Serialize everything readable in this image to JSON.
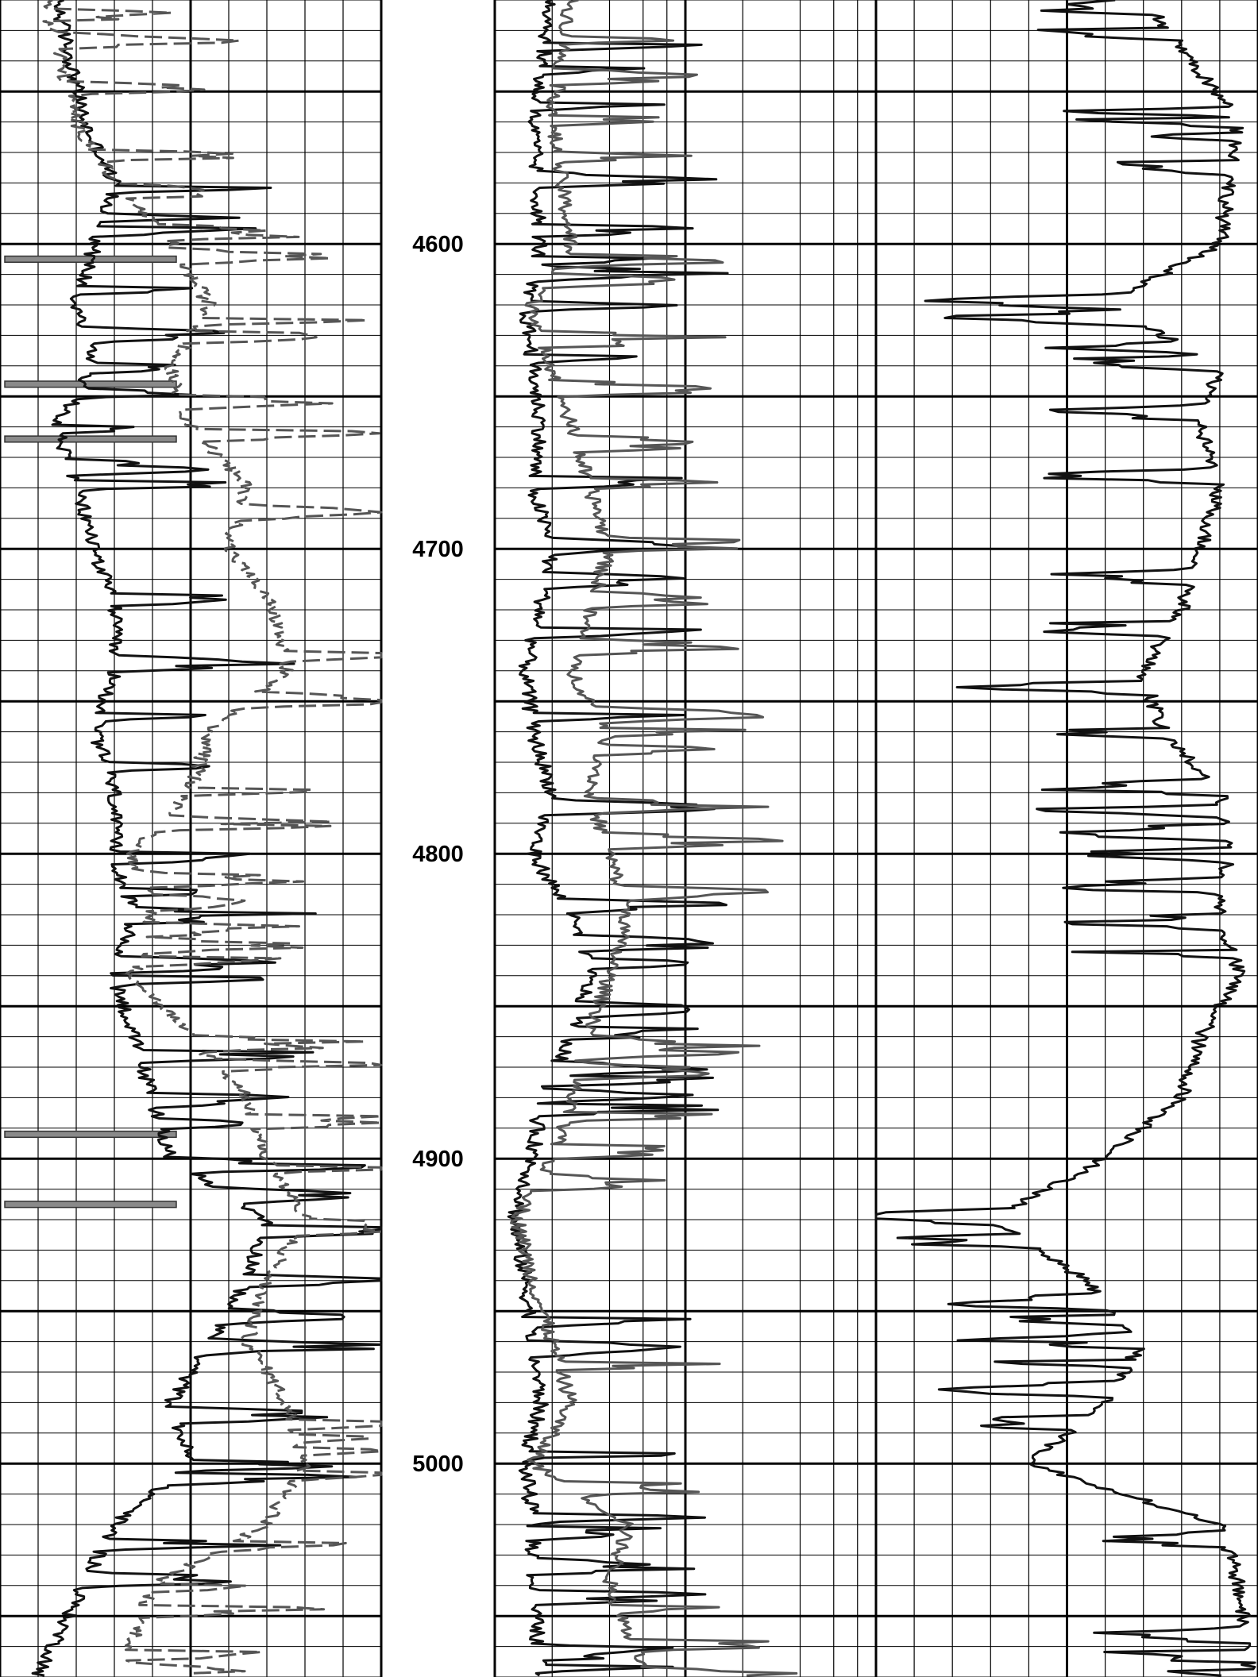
{
  "chart_data": {
    "type": "line",
    "title": "",
    "ylabel": "",
    "depth_range": [
      4520,
      5070
    ],
    "depth_axis_reversed": true,
    "grid": true,
    "major_grid_every": 50,
    "minor_grid_every": 10,
    "depth_ticks": [
      {
        "depth": 4600,
        "label": "4600"
      },
      {
        "depth": 4700,
        "label": "4700"
      },
      {
        "depth": 4800,
        "label": "4800"
      },
      {
        "depth": 4900,
        "label": "4900"
      },
      {
        "depth": 5000,
        "label": "5000"
      }
    ],
    "tracks": [
      {
        "name": "",
        "scale": "linear",
        "vertical_divisions": 10,
        "series": [
          {
            "name": "",
            "style": "solid",
            "color": "#111111",
            "profile": [
              [
                4520,
                0.15
              ],
              [
                4560,
                0.22
              ],
              [
                4580,
                0.3
              ],
              [
                4600,
                0.25
              ],
              [
                4620,
                0.2
              ],
              [
                4640,
                0.25
              ],
              [
                4660,
                0.15
              ],
              [
                4680,
                0.2
              ],
              [
                4700,
                0.25
              ],
              [
                4720,
                0.3
              ],
              [
                4740,
                0.3
              ],
              [
                4760,
                0.25
              ],
              [
                4780,
                0.3
              ],
              [
                4800,
                0.3
              ],
              [
                4820,
                0.35
              ],
              [
                4840,
                0.3
              ],
              [
                4860,
                0.35
              ],
              [
                4880,
                0.4
              ],
              [
                4900,
                0.45
              ],
              [
                4920,
                0.7
              ],
              [
                4940,
                0.65
              ],
              [
                4960,
                0.55
              ],
              [
                4980,
                0.45
              ],
              [
                5000,
                0.5
              ],
              [
                5020,
                0.3
              ],
              [
                5040,
                0.22
              ],
              [
                5070,
                0.1
              ]
            ]
          },
          {
            "name": "",
            "style": "dashed",
            "color": "#555555",
            "profile": [
              [
                4520,
                0.12
              ],
              [
                4560,
                0.2
              ],
              [
                4580,
                0.3
              ],
              [
                4600,
                0.45
              ],
              [
                4620,
                0.55
              ],
              [
                4640,
                0.45
              ],
              [
                4660,
                0.5
              ],
              [
                4680,
                0.65
              ],
              [
                4700,
                0.6
              ],
              [
                4720,
                0.72
              ],
              [
                4740,
                0.75
              ],
              [
                4760,
                0.55
              ],
              [
                4780,
                0.5
              ],
              [
                4800,
                0.35
              ],
              [
                4820,
                0.4
              ],
              [
                4840,
                0.35
              ],
              [
                4860,
                0.5
              ],
              [
                4880,
                0.65
              ],
              [
                4900,
                0.7
              ],
              [
                4920,
                0.8
              ],
              [
                4940,
                0.7
              ],
              [
                4960,
                0.65
              ],
              [
                4980,
                0.75
              ],
              [
                5000,
                0.8
              ],
              [
                5020,
                0.7
              ],
              [
                5040,
                0.4
              ],
              [
                5070,
                0.32
              ]
            ]
          }
        ]
      },
      {
        "name": "",
        "scale": "logarithmic",
        "vertical_divisions": 10,
        "series": [
          {
            "name": "",
            "style": "solid",
            "color": "#111111",
            "profile": [
              [
                4520,
                0.15
              ],
              [
                4560,
                0.1
              ],
              [
                4600,
                0.12
              ],
              [
                4620,
                0.08
              ],
              [
                4640,
                0.1
              ],
              [
                4660,
                0.12
              ],
              [
                4680,
                0.1
              ],
              [
                4700,
                0.15
              ],
              [
                4720,
                0.12
              ],
              [
                4740,
                0.08
              ],
              [
                4760,
                0.1
              ],
              [
                4780,
                0.15
              ],
              [
                4800,
                0.1
              ],
              [
                4820,
                0.2
              ],
              [
                4840,
                0.25
              ],
              [
                4860,
                0.2
              ],
              [
                4880,
                0.12
              ],
              [
                4900,
                0.1
              ],
              [
                4920,
                0.05
              ],
              [
                4940,
                0.08
              ],
              [
                4960,
                0.1
              ],
              [
                4980,
                0.12
              ],
              [
                5000,
                0.08
              ],
              [
                5020,
                0.1
              ],
              [
                5040,
                0.1
              ],
              [
                5070,
                0.12
              ]
            ]
          },
          {
            "name": "",
            "style": "solid",
            "color": "#555555",
            "profile": [
              [
                4520,
                0.2
              ],
              [
                4560,
                0.15
              ],
              [
                4600,
                0.2
              ],
              [
                4620,
                0.1
              ],
              [
                4640,
                0.15
              ],
              [
                4660,
                0.2
              ],
              [
                4680,
                0.25
              ],
              [
                4700,
                0.3
              ],
              [
                4720,
                0.25
              ],
              [
                4740,
                0.2
              ],
              [
                4760,
                0.3
              ],
              [
                4780,
                0.25
              ],
              [
                4800,
                0.3
              ],
              [
                4820,
                0.35
              ],
              [
                4840,
                0.3
              ],
              [
                4860,
                0.25
              ],
              [
                4880,
                0.2
              ],
              [
                4900,
                0.15
              ],
              [
                4920,
                0.06
              ],
              [
                4940,
                0.1
              ],
              [
                4960,
                0.15
              ],
              [
                4980,
                0.2
              ],
              [
                5000,
                0.1
              ],
              [
                5020,
                0.35
              ],
              [
                5040,
                0.3
              ],
              [
                5070,
                0.4
              ]
            ]
          }
        ]
      },
      {
        "name": "",
        "scale": "linear",
        "vertical_divisions": 10,
        "series": [
          {
            "name": "",
            "style": "solid",
            "color": "#111111",
            "profile": [
              [
                4520,
                0.7
              ],
              [
                4560,
                0.95
              ],
              [
                4600,
                0.9
              ],
              [
                4620,
                0.6
              ],
              [
                4640,
                0.9
              ],
              [
                4660,
                0.85
              ],
              [
                4680,
                0.9
              ],
              [
                4700,
                0.85
              ],
              [
                4720,
                0.8
              ],
              [
                4740,
                0.7
              ],
              [
                4760,
                0.75
              ],
              [
                4780,
                0.9
              ],
              [
                4800,
                0.92
              ],
              [
                4820,
                0.9
              ],
              [
                4840,
                0.95
              ],
              [
                4860,
                0.85
              ],
              [
                4880,
                0.8
              ],
              [
                4900,
                0.6
              ],
              [
                4920,
                0.3
              ],
              [
                4940,
                0.55
              ],
              [
                4960,
                0.7
              ],
              [
                4980,
                0.6
              ],
              [
                5000,
                0.4
              ],
              [
                5020,
                0.9
              ],
              [
                5040,
                0.95
              ],
              [
                5070,
                0.98
              ]
            ]
          }
        ]
      }
    ],
    "shaded_intervals": [
      {
        "track": 0,
        "from": 4604,
        "to": 4606
      },
      {
        "track": 0,
        "from": 4645,
        "to": 4647
      },
      {
        "track": 0,
        "from": 4663,
        "to": 4665
      },
      {
        "track": 0,
        "from": 4891,
        "to": 4893
      },
      {
        "track": 0,
        "from": 4914,
        "to": 4916
      }
    ]
  }
}
